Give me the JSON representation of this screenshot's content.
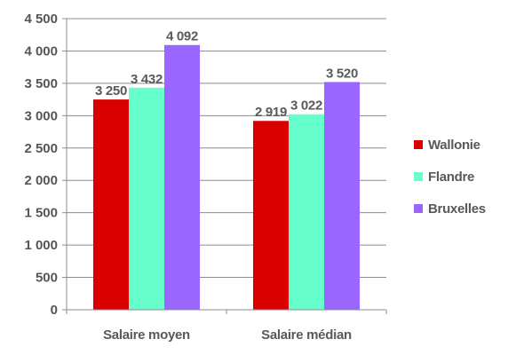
{
  "chart_data": {
    "type": "bar",
    "categories": [
      "Salaire moyen",
      "Salaire médian"
    ],
    "series": [
      {
        "name": "Wallonie",
        "values": [
          3250,
          2919
        ],
        "labels": [
          "3 250",
          "2 919"
        ],
        "color": "#d90000"
      },
      {
        "name": "Flandre",
        "values": [
          3432,
          3022
        ],
        "labels": [
          "3 432",
          "3 022"
        ],
        "color": "#66ffcc"
      },
      {
        "name": "Bruxelles",
        "values": [
          4092,
          3520
        ],
        "labels": [
          "4 092",
          "3 520"
        ],
        "color": "#9966ff"
      }
    ],
    "ylim": [
      0,
      4500
    ],
    "yticks": [
      0,
      500,
      1000,
      1500,
      2000,
      2500,
      3000,
      3500,
      4000,
      4500
    ],
    "ytick_labels": [
      "0",
      "500",
      "1 000",
      "1 500",
      "2 000",
      "2 500",
      "3 000",
      "3 500",
      "4 000",
      "4 500"
    ],
    "grid": true,
    "legend_position": "right"
  }
}
